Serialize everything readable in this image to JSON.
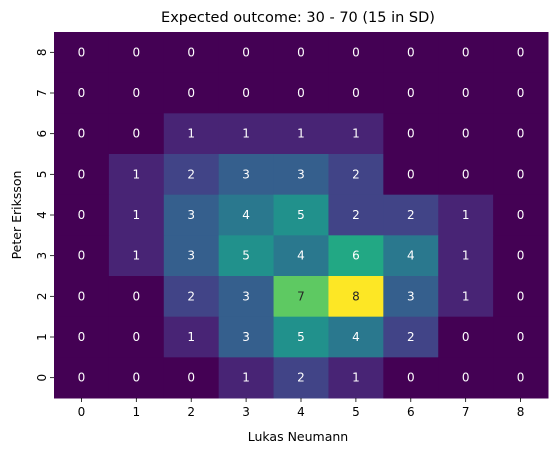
{
  "chart_data": {
    "type": "heatmap",
    "title": "Expected outcome: 30 - 70 (15 in SD)",
    "xlabel": "Lukas Neumann",
    "ylabel": "Peter Eriksson",
    "x_categories": [
      "0",
      "1",
      "2",
      "3",
      "4",
      "5",
      "6",
      "7",
      "8"
    ],
    "y_categories": [
      "8",
      "7",
      "6",
      "5",
      "4",
      "3",
      "2",
      "1",
      "0"
    ],
    "values": [
      [
        0,
        0,
        0,
        0,
        0,
        0,
        0,
        0,
        0
      ],
      [
        0,
        0,
        0,
        0,
        0,
        0,
        0,
        0,
        0
      ],
      [
        0,
        0,
        1,
        1,
        1,
        1,
        0,
        0,
        0
      ],
      [
        0,
        1,
        2,
        3,
        3,
        2,
        0,
        0,
        0
      ],
      [
        0,
        1,
        3,
        4,
        5,
        2,
        2,
        1,
        0
      ],
      [
        0,
        1,
        3,
        5,
        4,
        6,
        4,
        1,
        0
      ],
      [
        0,
        0,
        2,
        3,
        7,
        8,
        3,
        1,
        0
      ],
      [
        0,
        0,
        1,
        3,
        5,
        4,
        2,
        0,
        0
      ],
      [
        0,
        0,
        0,
        1,
        2,
        1,
        0,
        0,
        0
      ]
    ],
    "value_range": [
      0,
      8
    ],
    "colormap": "viridis",
    "annotations": true,
    "grid": false,
    "legend": "none"
  }
}
